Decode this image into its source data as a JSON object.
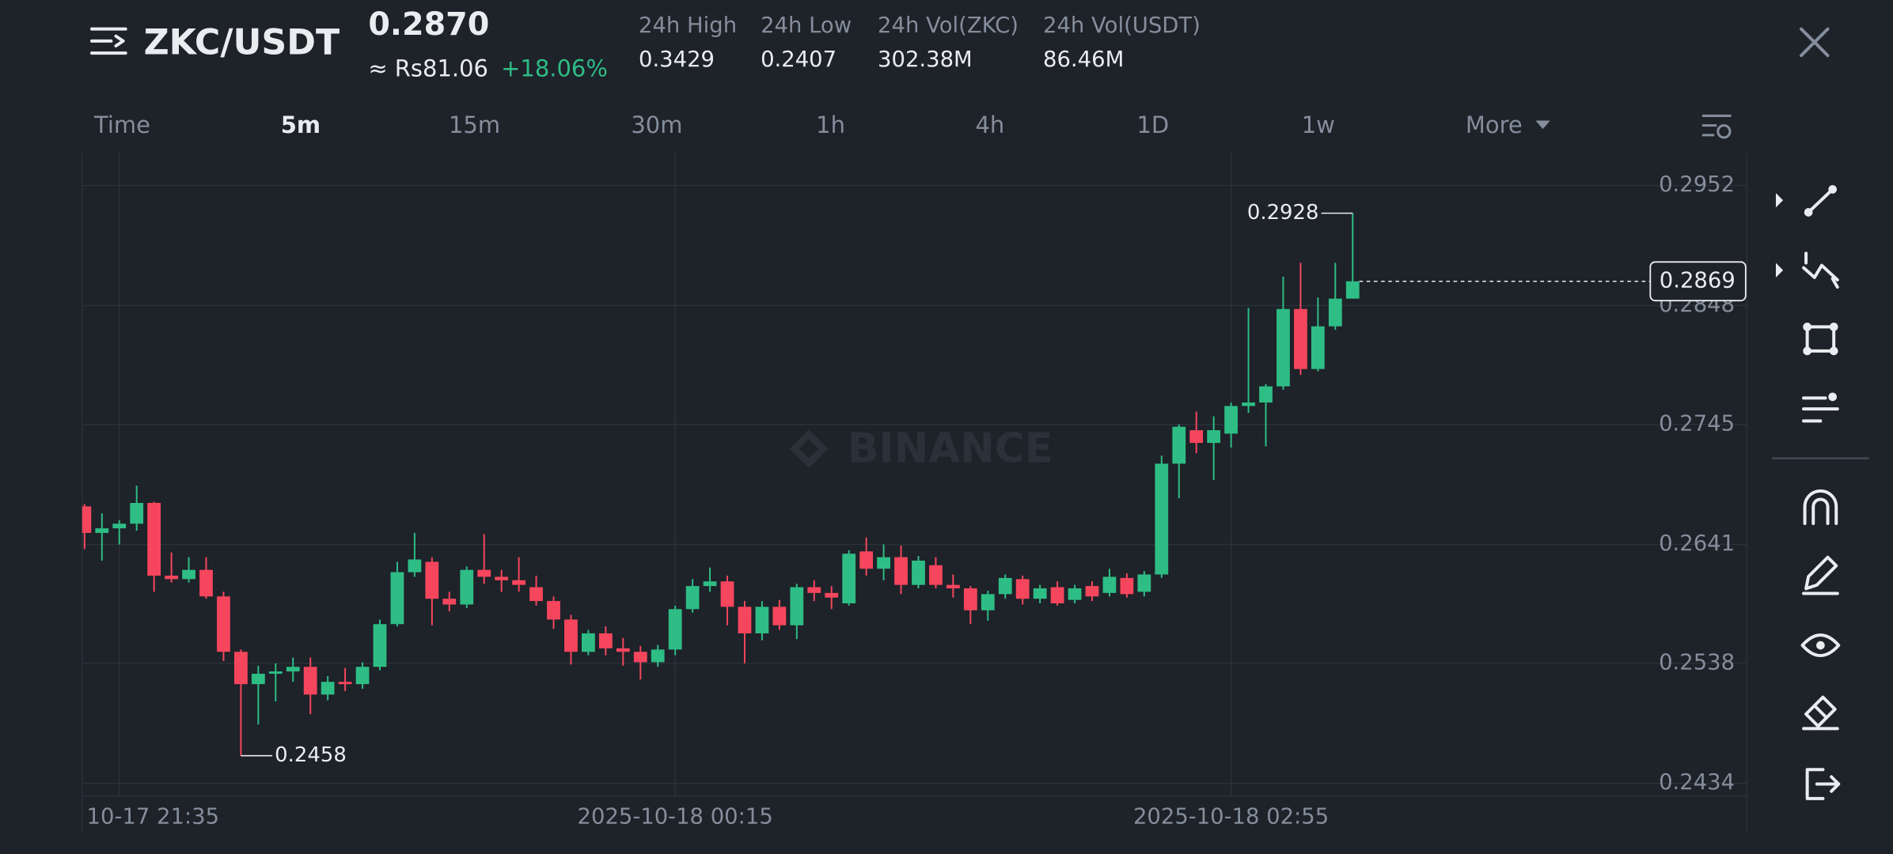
{
  "header": {
    "pair": "ZKC/USDT",
    "last_price": "0.2870",
    "fiat_price": "≈ Rs81.06",
    "change": "+18.06%",
    "stats": [
      {
        "label": "24h High",
        "value": "0.3429"
      },
      {
        "label": "24h Low",
        "value": "0.2407"
      },
      {
        "label": "24h Vol(ZKC)",
        "value": "302.38M"
      },
      {
        "label": "24h Vol(USDT)",
        "value": "86.46M"
      }
    ]
  },
  "timeframes": [
    "Time",
    "5m",
    "15m",
    "30m",
    "1h",
    "4h",
    "1D",
    "1w",
    "More"
  ],
  "chart_data": {
    "type": "candlestick",
    "watermark": "BINANCE",
    "categories": [
      null,
      null,
      "10-17 21:35",
      null,
      null,
      null,
      null,
      null,
      null,
      null,
      null,
      null,
      null,
      null,
      null,
      null,
      null,
      null,
      null,
      null,
      null,
      null,
      null,
      null,
      null,
      null,
      null,
      null,
      null,
      null,
      null,
      null,
      null,
      null,
      "2025-10-18 00:15",
      null,
      null,
      null,
      null,
      null,
      null,
      null,
      null,
      null,
      null,
      null,
      null,
      null,
      null,
      null,
      null,
      null,
      null,
      null,
      null,
      null,
      null,
      null,
      null,
      null,
      null,
      null,
      null,
      null,
      null,
      null,
      "2025-10-18 02:55",
      null,
      null,
      null,
      null,
      null,
      null,
      null
    ],
    "open": [
      0.2674,
      0.2651,
      0.2655,
      0.2659,
      0.2677,
      0.2614,
      0.2611,
      0.2619,
      0.2596,
      0.2548,
      0.252,
      0.2529,
      0.2531,
      0.2535,
      0.2511,
      0.2522,
      0.252,
      0.2535,
      0.2572,
      0.2617,
      0.2626,
      0.2594,
      0.2589,
      0.2619,
      0.2613,
      0.261,
      0.2604,
      0.2592,
      0.2576,
      0.2548,
      0.2564,
      0.2551,
      0.2548,
      0.2539,
      0.255,
      0.2585,
      0.2605,
      0.2609,
      0.2587,
      0.2564,
      0.2587,
      0.2571,
      0.2604,
      0.2599,
      0.259,
      0.2635,
      0.262,
      0.263,
      0.2606,
      0.2623,
      0.2606,
      0.2603,
      0.2584,
      0.2598,
      0.2611,
      0.2594,
      0.2604,
      0.2593,
      0.2605,
      0.2599,
      0.2612,
      0.26,
      0.2615,
      0.2711,
      0.274,
      0.2729,
      0.2737,
      0.2761,
      0.2764,
      0.2778,
      0.2845,
      0.2793,
      0.283,
      0.2854
    ],
    "high": [
      0.2676,
      0.2668,
      0.2662,
      0.2692,
      0.2678,
      0.2634,
      0.263,
      0.263,
      0.26,
      0.255,
      0.2536,
      0.2538,
      0.2543,
      0.2543,
      0.2527,
      0.2534,
      0.2539,
      0.2576,
      0.2626,
      0.2651,
      0.263,
      0.26,
      0.2622,
      0.265,
      0.2619,
      0.263,
      0.2614,
      0.2596,
      0.258,
      0.2567,
      0.257,
      0.256,
      0.2553,
      0.2554,
      0.2588,
      0.2611,
      0.2621,
      0.2614,
      0.2592,
      0.2592,
      0.2593,
      0.2607,
      0.261,
      0.2605,
      0.2636,
      0.2647,
      0.2641,
      0.264,
      0.2631,
      0.263,
      0.2615,
      0.2605,
      0.2601,
      0.2615,
      0.2614,
      0.2606,
      0.2609,
      0.2606,
      0.2609,
      0.262,
      0.2616,
      0.2618,
      0.2718,
      0.2745,
      0.2756,
      0.2752,
      0.2764,
      0.2846,
      0.278,
      0.2873,
      0.2885,
      0.2855,
      0.2885,
      0.2928
    ],
    "low": [
      0.2637,
      0.2627,
      0.2641,
      0.2653,
      0.26,
      0.2608,
      0.2608,
      0.2594,
      0.254,
      0.2458,
      0.2485,
      0.2505,
      0.2522,
      0.2494,
      0.2506,
      0.2514,
      0.2516,
      0.2532,
      0.257,
      0.2613,
      0.2571,
      0.2583,
      0.2586,
      0.2607,
      0.26,
      0.26,
      0.2588,
      0.2568,
      0.2537,
      0.2545,
      0.2545,
      0.2536,
      0.2524,
      0.2535,
      0.2545,
      0.2582,
      0.26,
      0.2571,
      0.2538,
      0.2558,
      0.2567,
      0.2559,
      0.2592,
      0.2585,
      0.2588,
      0.2614,
      0.261,
      0.2598,
      0.2603,
      0.2603,
      0.2595,
      0.2572,
      0.2575,
      0.2594,
      0.2589,
      0.259,
      0.2588,
      0.259,
      0.2592,
      0.2596,
      0.2595,
      0.2596,
      0.2612,
      0.2681,
      0.272,
      0.2697,
      0.2725,
      0.2755,
      0.2726,
      0.2775,
      0.2788,
      0.2791,
      0.2827,
      0.2854
    ],
    "close": [
      0.2651,
      0.2655,
      0.2659,
      0.2677,
      0.2614,
      0.2611,
      0.2619,
      0.2596,
      0.2548,
      0.252,
      0.2529,
      0.2531,
      0.2535,
      0.2511,
      0.2522,
      0.252,
      0.2535,
      0.2572,
      0.2617,
      0.2628,
      0.2594,
      0.2589,
      0.2619,
      0.2613,
      0.261,
      0.2606,
      0.2592,
      0.2576,
      0.2548,
      0.2564,
      0.2551,
      0.2548,
      0.2539,
      0.255,
      0.2585,
      0.2605,
      0.2609,
      0.2587,
      0.2564,
      0.2587,
      0.2571,
      0.2604,
      0.2599,
      0.2595,
      0.2633,
      0.262,
      0.263,
      0.2606,
      0.2627,
      0.2606,
      0.2603,
      0.2584,
      0.2598,
      0.2612,
      0.2594,
      0.2603,
      0.259,
      0.2603,
      0.2596,
      0.2613,
      0.2598,
      0.2615,
      0.2711,
      0.2743,
      0.2729,
      0.274,
      0.2761,
      0.2764,
      0.2778,
      0.2845,
      0.2793,
      0.283,
      0.2854,
      0.2869
    ],
    "up_color": "#2ebd85",
    "down_color": "#f6465d",
    "ylim": [
      0.2423,
      0.298
    ],
    "yticks": [
      0.2434,
      0.2538,
      0.2641,
      0.2745,
      0.2848,
      0.2952
    ],
    "grid": true
  }
}
